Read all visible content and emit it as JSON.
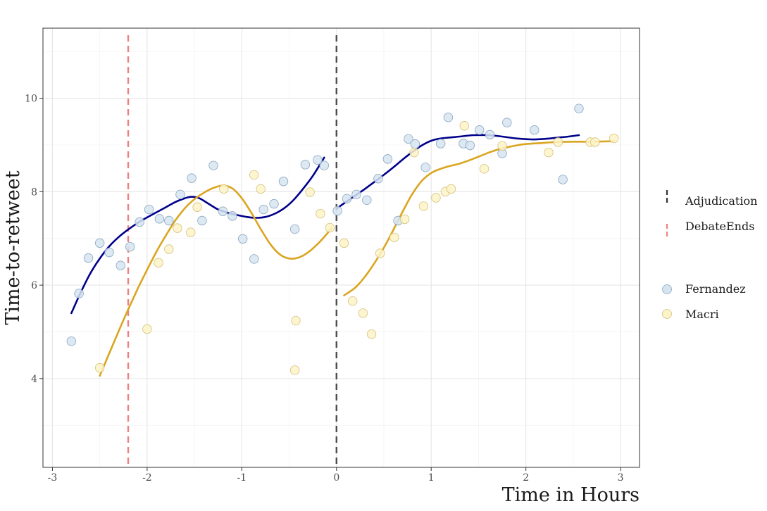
{
  "chart_data": {
    "type": "scatter",
    "xlabel": "Time in Hours",
    "ylabel": "Time-to-retweet",
    "xlim": [
      -3.1,
      3.2
    ],
    "ylim": [
      2.1,
      11.5
    ],
    "x_ticks": [
      -3,
      -2,
      -1,
      0,
      1,
      2,
      3
    ],
    "x_tick_labels": [
      "-3",
      "-2",
      "-1",
      "0",
      "1",
      "2",
      "3"
    ],
    "y_ticks": [
      4,
      6,
      8,
      10
    ],
    "y_tick_labels": [
      "4",
      "6",
      "8",
      "10"
    ],
    "grid": true,
    "legend_position": "right",
    "vlines": [
      {
        "name": "Adjudication",
        "x": 0,
        "color": "#4d4d4d"
      },
      {
        "name": "DebateEnds",
        "x": -2.2,
        "color": "#f08080"
      }
    ],
    "series": [
      {
        "name": "Fernandez",
        "fill": "#d6e4f0",
        "stroke": "#8aa6c1",
        "line_color": "#00008b",
        "points": [
          [
            -2.8,
            4.8
          ],
          [
            -2.72,
            5.82
          ],
          [
            -2.62,
            6.58
          ],
          [
            -2.5,
            6.9
          ],
          [
            -2.4,
            6.7
          ],
          [
            -2.28,
            6.42
          ],
          [
            -2.18,
            6.82
          ],
          [
            -2.08,
            7.35
          ],
          [
            -1.98,
            7.62
          ],
          [
            -1.87,
            7.42
          ],
          [
            -1.77,
            7.38
          ],
          [
            -1.65,
            7.94
          ],
          [
            -1.53,
            8.29
          ],
          [
            -1.42,
            7.38
          ],
          [
            -1.3,
            8.56
          ],
          [
            -1.2,
            7.58
          ],
          [
            -1.1,
            7.48
          ],
          [
            -0.99,
            6.99
          ],
          [
            -0.87,
            6.56
          ],
          [
            -0.77,
            7.62
          ],
          [
            -0.66,
            7.74
          ],
          [
            -0.56,
            8.22
          ],
          [
            -0.44,
            7.2
          ],
          [
            -0.33,
            8.58
          ],
          [
            -0.2,
            8.68
          ],
          [
            -0.13,
            8.56
          ],
          [
            0.01,
            7.59
          ],
          [
            0.11,
            7.85
          ],
          [
            0.21,
            7.94
          ],
          [
            0.32,
            7.82
          ],
          [
            0.44,
            8.28
          ],
          [
            0.54,
            8.7
          ],
          [
            0.65,
            7.38
          ],
          [
            0.76,
            9.13
          ],
          [
            0.83,
            9.02
          ],
          [
            0.94,
            8.52
          ],
          [
            1.1,
            9.03
          ],
          [
            1.18,
            9.59
          ],
          [
            1.34,
            9.03
          ],
          [
            1.41,
            8.99
          ],
          [
            1.51,
            9.32
          ],
          [
            1.62,
            9.22
          ],
          [
            1.75,
            8.82
          ],
          [
            1.8,
            9.48
          ],
          [
            2.09,
            9.32
          ],
          [
            2.39,
            8.26
          ],
          [
            2.56,
            9.78
          ]
        ],
        "smooth_pre": [
          [
            -2.8,
            5.4
          ],
          [
            -2.7,
            5.85
          ],
          [
            -2.6,
            6.25
          ],
          [
            -2.5,
            6.57
          ],
          [
            -2.4,
            6.83
          ],
          [
            -2.3,
            7.03
          ],
          [
            -2.2,
            7.19
          ],
          [
            -2.1,
            7.33
          ],
          [
            -2.0,
            7.45
          ],
          [
            -1.9,
            7.56
          ],
          [
            -1.8,
            7.67
          ],
          [
            -1.7,
            7.78
          ],
          [
            -1.6,
            7.86
          ],
          [
            -1.53,
            7.89
          ],
          [
            -1.45,
            7.86
          ],
          [
            -1.35,
            7.74
          ],
          [
            -1.25,
            7.62
          ],
          [
            -1.15,
            7.55
          ],
          [
            -1.05,
            7.5
          ],
          [
            -0.95,
            7.46
          ],
          [
            -0.85,
            7.44
          ],
          [
            -0.75,
            7.46
          ],
          [
            -0.65,
            7.53
          ],
          [
            -0.55,
            7.65
          ],
          [
            -0.45,
            7.83
          ],
          [
            -0.35,
            8.07
          ],
          [
            -0.25,
            8.34
          ],
          [
            -0.13,
            8.73
          ]
        ],
        "smooth_post": [
          [
            0.01,
            7.65
          ],
          [
            0.1,
            7.78
          ],
          [
            0.2,
            7.92
          ],
          [
            0.3,
            8.06
          ],
          [
            0.4,
            8.21
          ],
          [
            0.5,
            8.36
          ],
          [
            0.6,
            8.52
          ],
          [
            0.7,
            8.69
          ],
          [
            0.8,
            8.85
          ],
          [
            0.9,
            8.99
          ],
          [
            1.0,
            9.09
          ],
          [
            1.1,
            9.14
          ],
          [
            1.2,
            9.16
          ],
          [
            1.3,
            9.18
          ],
          [
            1.45,
            9.21
          ],
          [
            1.6,
            9.21
          ],
          [
            1.75,
            9.18
          ],
          [
            1.9,
            9.14
          ],
          [
            2.05,
            9.12
          ],
          [
            2.2,
            9.13
          ],
          [
            2.35,
            9.16
          ],
          [
            2.45,
            9.18
          ],
          [
            2.56,
            9.21
          ]
        ]
      },
      {
        "name": "Macri",
        "fill": "#fdf3c8",
        "stroke": "#d4c27a",
        "line_color": "#daa520",
        "points": [
          [
            -2.5,
            4.23
          ],
          [
            -2.0,
            5.06
          ],
          [
            -1.88,
            6.48
          ],
          [
            -1.77,
            6.77
          ],
          [
            -1.68,
            7.22
          ],
          [
            -1.54,
            7.13
          ],
          [
            -1.47,
            7.67
          ],
          [
            -1.19,
            8.06
          ],
          [
            -0.87,
            8.36
          ],
          [
            -0.8,
            8.06
          ],
          [
            -0.43,
            5.24
          ],
          [
            -0.44,
            4.18
          ],
          [
            -0.28,
            7.99
          ],
          [
            -0.17,
            7.53
          ],
          [
            -0.07,
            7.23
          ],
          [
            0.08,
            6.9
          ],
          [
            0.17,
            5.66
          ],
          [
            0.28,
            5.4
          ],
          [
            0.37,
            4.95
          ],
          [
            0.46,
            6.68
          ],
          [
            0.61,
            7.02
          ],
          [
            0.72,
            7.41
          ],
          [
            0.82,
            8.84
          ],
          [
            0.92,
            7.69
          ],
          [
            1.05,
            7.87
          ],
          [
            1.15,
            8.0
          ],
          [
            1.21,
            8.06
          ],
          [
            1.35,
            9.41
          ],
          [
            1.56,
            8.49
          ],
          [
            1.75,
            8.98
          ],
          [
            2.24,
            8.84
          ],
          [
            2.34,
            9.06
          ],
          [
            2.68,
            9.06
          ],
          [
            2.73,
            9.06
          ],
          [
            2.93,
            9.14
          ]
        ],
        "smooth_pre": [
          [
            -2.5,
            4.06
          ],
          [
            -2.4,
            4.54
          ],
          [
            -2.3,
            5.02
          ],
          [
            -2.2,
            5.48
          ],
          [
            -2.1,
            5.92
          ],
          [
            -2.0,
            6.33
          ],
          [
            -1.9,
            6.72
          ],
          [
            -1.8,
            7.07
          ],
          [
            -1.7,
            7.39
          ],
          [
            -1.6,
            7.65
          ],
          [
            -1.5,
            7.84
          ],
          [
            -1.4,
            7.98
          ],
          [
            -1.3,
            8.08
          ],
          [
            -1.2,
            8.13
          ],
          [
            -1.1,
            8.07
          ],
          [
            -1.0,
            7.86
          ],
          [
            -0.9,
            7.55
          ],
          [
            -0.8,
            7.2
          ],
          [
            -0.7,
            6.88
          ],
          [
            -0.6,
            6.66
          ],
          [
            -0.5,
            6.57
          ],
          [
            -0.4,
            6.59
          ],
          [
            -0.3,
            6.7
          ],
          [
            -0.2,
            6.88
          ],
          [
            -0.1,
            7.1
          ],
          [
            -0.05,
            7.23
          ]
        ],
        "smooth_post": [
          [
            0.08,
            5.78
          ],
          [
            0.2,
            5.95
          ],
          [
            0.3,
            6.18
          ],
          [
            0.4,
            6.47
          ],
          [
            0.5,
            6.8
          ],
          [
            0.6,
            7.18
          ],
          [
            0.7,
            7.58
          ],
          [
            0.8,
            7.95
          ],
          [
            0.9,
            8.23
          ],
          [
            1.0,
            8.4
          ],
          [
            1.1,
            8.49
          ],
          [
            1.2,
            8.55
          ],
          [
            1.3,
            8.6
          ],
          [
            1.4,
            8.67
          ],
          [
            1.5,
            8.75
          ],
          [
            1.6,
            8.83
          ],
          [
            1.7,
            8.9
          ],
          [
            1.8,
            8.95
          ],
          [
            1.9,
            8.99
          ],
          [
            2.0,
            9.02
          ],
          [
            2.15,
            9.04
          ],
          [
            2.3,
            9.06
          ],
          [
            2.5,
            9.07
          ],
          [
            2.7,
            9.07
          ],
          [
            2.93,
            9.08
          ]
        ]
      }
    ]
  }
}
